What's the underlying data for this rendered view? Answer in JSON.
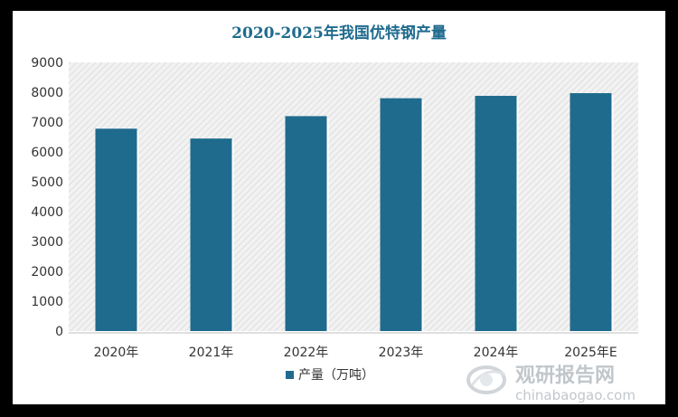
{
  "chart_data": {
    "type": "bar",
    "title": "2020-2025年我国优特钢产量",
    "categories": [
      "2020年",
      "2021年",
      "2022年",
      "2023年",
      "2024年",
      "2025年E"
    ],
    "series": [
      {
        "name": "产量（万吨）",
        "values": [
          6780,
          6450,
          7200,
          7800,
          7880,
          7970
        ]
      }
    ],
    "ylim": [
      0,
      9000
    ],
    "yticks": [
      0,
      1000,
      2000,
      3000,
      4000,
      5000,
      6000,
      7000,
      8000,
      9000
    ],
    "xlabel": "",
    "ylabel": "",
    "legend_position": "bottom-center",
    "plot_background": "hatched-light-gray",
    "colors": {
      "bar": "#1f6b8e",
      "title": "#1f6b8e",
      "frame": "#000000"
    }
  },
  "watermark": {
    "brand": "观研报告网",
    "url": "chinabaogao.com",
    "icon": "globe-logo-icon"
  }
}
